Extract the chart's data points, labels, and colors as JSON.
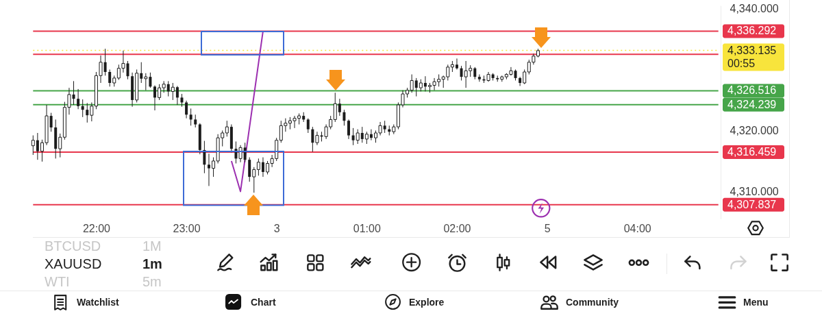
{
  "chart_data": {
    "type": "candlestick",
    "categories": [
      null,
      null,
      null,
      null,
      null,
      null,
      null,
      null,
      null,
      null,
      null,
      null,
      null,
      null,
      "22:00",
      null,
      null,
      null,
      null,
      null,
      null,
      null,
      null,
      null,
      null,
      null,
      null,
      null,
      null,
      null,
      null,
      null,
      null,
      null,
      "23:00",
      null,
      null,
      null,
      null,
      null,
      null,
      null,
      null,
      null,
      null,
      null,
      null,
      null,
      null,
      null,
      null,
      null,
      null,
      null,
      "3",
      null,
      null,
      null,
      null,
      null,
      null,
      null,
      null,
      null,
      null,
      null,
      null,
      null,
      null,
      null,
      null,
      null,
      null,
      null,
      "01:00",
      null,
      null,
      null,
      null,
      null,
      null,
      null,
      null,
      null,
      null,
      null,
      null,
      null,
      null,
      null,
      null,
      null,
      null,
      null,
      "02:00",
      null,
      null,
      null,
      null,
      null,
      null,
      null,
      null,
      null,
      null,
      null,
      null,
      null,
      null,
      null,
      null,
      null,
      null,
      null,
      "5",
      null,
      null,
      null,
      null,
      null,
      null,
      null,
      null,
      null,
      null,
      null,
      null,
      null,
      null,
      null,
      null,
      null,
      null,
      null,
      "04:00",
      null,
      null,
      null,
      null,
      null,
      null,
      null,
      null,
      null,
      null,
      null,
      null,
      null,
      null,
      null,
      null,
      null,
      null
    ],
    "ohlc": [
      [
        4317.5,
        4319.2,
        4316.0,
        4318.4
      ],
      [
        4318.4,
        4319.6,
        4315.2,
        4316.6
      ],
      [
        4316.6,
        4318.5,
        4314.9,
        4318.0
      ],
      [
        4318.0,
        4324.2,
        4317.6,
        4322.4
      ],
      [
        4322.4,
        4322.9,
        4319.8,
        4320.5
      ],
      [
        4320.5,
        4321.8,
        4315.4,
        4317.0
      ],
      [
        4317.0,
        4319.5,
        4315.6,
        4318.9
      ],
      [
        4318.9,
        4324.7,
        4318.5,
        4323.8
      ],
      [
        4323.8,
        4327.0,
        4322.6,
        4325.9
      ],
      [
        4325.9,
        4328.1,
        4324.2,
        4325.2
      ],
      [
        4325.2,
        4326.8,
        4323.5,
        4324.0
      ],
      [
        4324.0,
        4325.1,
        4322.2,
        4323.4
      ],
      [
        4323.4,
        4324.5,
        4321.3,
        4322.5
      ],
      [
        4322.5,
        4324.6,
        4321.5,
        4324.0
      ],
      [
        4324.0,
        4329.6,
        4323.5,
        4329.0
      ],
      [
        4329.0,
        4332.3,
        4327.8,
        4331.2
      ],
      [
        4331.2,
        4333.4,
        4329.0,
        4329.6
      ],
      [
        4329.6,
        4330.0,
        4327.2,
        4327.8
      ],
      [
        4327.8,
        4329.0,
        4327.2,
        4328.6
      ],
      [
        4328.6,
        4330.8,
        4328.3,
        4330.2
      ],
      [
        4330.2,
        4333.1,
        4329.5,
        4331.0
      ],
      [
        4331.0,
        4331.4,
        4328.4,
        4328.9
      ],
      [
        4328.9,
        4329.5,
        4323.9,
        4325.0
      ],
      [
        4325.0,
        4330.0,
        4324.6,
        4329.4
      ],
      [
        4329.4,
        4331.2,
        4327.8,
        4328.5
      ],
      [
        4328.5,
        4329.4,
        4326.6,
        4328.8
      ],
      [
        4328.8,
        4329.5,
        4327.0,
        4327.2
      ],
      [
        4327.2,
        4327.4,
        4323.3,
        4325.4
      ],
      [
        4325.4,
        4327.6,
        4325.0,
        4327.0
      ],
      [
        4327.0,
        4328.1,
        4326.2,
        4327.6
      ],
      [
        4327.6,
        4328.1,
        4325.6,
        4326.4
      ],
      [
        4326.4,
        4327.8,
        4325.0,
        4327.1
      ],
      [
        4327.1,
        4327.3,
        4324.2,
        4325.4
      ],
      [
        4325.4,
        4326.0,
        4323.9,
        4324.6
      ],
      [
        4324.6,
        4324.9,
        4322.0,
        4322.6
      ],
      [
        4322.6,
        4323.6,
        4320.8,
        4321.8
      ],
      [
        4321.8,
        4322.6,
        4320.5,
        4321.0
      ],
      [
        4321.0,
        4321.2,
        4316.1,
        4316.8
      ],
      [
        4316.8,
        4318.3,
        4313.0,
        4314.4
      ],
      [
        4314.4,
        4316.2,
        4310.9,
        4313.8
      ],
      [
        4313.8,
        4315.6,
        4312.4,
        4315.0
      ],
      [
        4315.0,
        4319.4,
        4314.6,
        4318.8
      ],
      [
        4318.8,
        4320.0,
        4317.4,
        4319.6
      ],
      [
        4319.6,
        4321.6,
        4319.0,
        4320.6
      ],
      [
        4320.6,
        4321.0,
        4316.4,
        4317.0
      ],
      [
        4317.0,
        4318.2,
        4314.6,
        4315.4
      ],
      [
        4315.4,
        4317.6,
        4314.8,
        4317.2
      ],
      [
        4317.2,
        4318.0,
        4314.8,
        4315.2
      ],
      [
        4315.2,
        4315.6,
        4311.6,
        4312.4
      ],
      [
        4312.4,
        4314.0,
        4309.8,
        4313.6
      ],
      [
        4313.6,
        4315.4,
        4312.6,
        4314.8
      ],
      [
        4314.8,
        4315.6,
        4312.4,
        4313.2
      ],
      [
        4313.2,
        4315.0,
        4312.8,
        4314.6
      ],
      [
        4314.6,
        4316.0,
        4314.0,
        4315.4
      ],
      [
        4315.4,
        4318.8,
        4315.0,
        4318.4
      ],
      [
        4318.4,
        4321.6,
        4318.0,
        4320.8
      ],
      [
        4320.8,
        4322.0,
        4319.8,
        4321.2
      ],
      [
        4321.2,
        4322.2,
        4320.2,
        4321.6
      ],
      [
        4321.6,
        4322.4,
        4320.4,
        4322.0
      ],
      [
        4322.0,
        4322.8,
        4321.0,
        4322.4
      ],
      [
        4322.4,
        4323.0,
        4321.4,
        4321.8
      ],
      [
        4321.8,
        4322.0,
        4319.6,
        4320.2
      ],
      [
        4320.2,
        4320.6,
        4316.5,
        4318.0
      ],
      [
        4318.0,
        4319.8,
        4317.6,
        4319.2
      ],
      [
        4319.2,
        4319.8,
        4318.2,
        4319.0
      ],
      [
        4319.0,
        4321.0,
        4318.6,
        4320.6
      ],
      [
        4320.6,
        4322.4,
        4320.2,
        4321.8
      ],
      [
        4321.8,
        4326.2,
        4321.4,
        4324.4
      ],
      [
        4324.4,
        4325.2,
        4322.4,
        4323.0
      ],
      [
        4323.0,
        4323.4,
        4320.8,
        4321.6
      ],
      [
        4321.6,
        4321.8,
        4318.6,
        4319.2
      ],
      [
        4319.2,
        4320.4,
        4317.6,
        4318.4
      ],
      [
        4318.4,
        4320.2,
        4317.8,
        4319.6
      ],
      [
        4319.6,
        4320.6,
        4318.0,
        4318.6
      ],
      [
        4318.6,
        4319.8,
        4317.8,
        4319.4
      ],
      [
        4319.4,
        4320.2,
        4318.4,
        4318.8
      ],
      [
        4318.8,
        4320.0,
        4318.0,
        4319.6
      ],
      [
        4319.6,
        4321.4,
        4319.2,
        4320.8
      ],
      [
        4320.8,
        4321.6,
        4319.6,
        4320.2
      ],
      [
        4320.2,
        4320.8,
        4319.2,
        4319.8
      ],
      [
        4319.8,
        4321.0,
        4319.4,
        4320.6
      ],
      [
        4320.6,
        4324.6,
        4320.2,
        4324.2
      ],
      [
        4324.2,
        4326.6,
        4323.8,
        4326.0
      ],
      [
        4326.0,
        4327.0,
        4325.4,
        4326.6
      ],
      [
        4326.6,
        4329.2,
        4326.2,
        4328.2
      ],
      [
        4328.2,
        4328.6,
        4325.6,
        4327.0
      ],
      [
        4327.0,
        4328.4,
        4326.4,
        4327.8
      ],
      [
        4327.8,
        4328.9,
        4326.4,
        4327.2
      ],
      [
        4327.2,
        4327.8,
        4326.2,
        4327.4
      ],
      [
        4327.4,
        4328.6,
        4326.6,
        4328.0
      ],
      [
        4328.0,
        4329.2,
        4327.2,
        4328.4
      ],
      [
        4328.4,
        4329.0,
        4327.0,
        4328.8
      ],
      [
        4328.8,
        4330.8,
        4328.2,
        4330.4
      ],
      [
        4330.4,
        4331.4,
        4329.6,
        4330.8
      ],
      [
        4330.8,
        4331.8,
        4330.0,
        4330.2
      ],
      [
        4330.2,
        4330.6,
        4328.2,
        4328.8
      ],
      [
        4328.8,
        4331.4,
        4327.0,
        4329.8
      ],
      [
        4329.8,
        4330.7,
        4328.8,
        4330.2
      ],
      [
        4330.2,
        4330.4,
        4328.4,
        4328.8
      ],
      [
        4328.8,
        4329.2,
        4328.0,
        4328.4
      ],
      [
        4328.4,
        4329.0,
        4327.8,
        4328.2
      ],
      [
        4328.2,
        4329.6,
        4328.0,
        4329.2
      ],
      [
        4329.2,
        4329.4,
        4328.2,
        4328.6
      ],
      [
        4328.6,
        4329.0,
        4328.0,
        4328.4
      ],
      [
        4328.4,
        4329.0,
        4328.0,
        4328.8
      ],
      [
        4328.8,
        4329.4,
        4328.4,
        4329.2
      ],
      [
        4329.2,
        4330.4,
        4329.0,
        4329.8
      ],
      [
        4329.8,
        4330.0,
        4328.2,
        4328.6
      ],
      [
        4328.6,
        4328.8,
        4327.3,
        4327.8
      ],
      [
        4327.8,
        4330.0,
        4327.6,
        4329.6
      ],
      [
        4329.6,
        4331.6,
        4329.2,
        4331.2
      ],
      [
        4331.2,
        4332.6,
        4330.8,
        4332.2
      ],
      [
        4332.2,
        4333.4,
        4332.0,
        4333.1
      ],
      null,
      null,
      null,
      null,
      null,
      null,
      null,
      null,
      null,
      null,
      null,
      null,
      null,
      null,
      null,
      null,
      null,
      null,
      null,
      null,
      null,
      null,
      null,
      null,
      null,
      null,
      null,
      null,
      null,
      null,
      null,
      null,
      null,
      null,
      null,
      null,
      null,
      null,
      null,
      null
    ],
    "color": "#1c1c1c",
    "series": [
      {
        "type": "line",
        "color": "#9c2fb0",
        "values": [
          null,
          null,
          null,
          null,
          null,
          null,
          null,
          null,
          null,
          null,
          null,
          null,
          null,
          null,
          null,
          null,
          null,
          null,
          null,
          null,
          null,
          null,
          null,
          null,
          null,
          null,
          null,
          null,
          null,
          null,
          null,
          null,
          null,
          null,
          null,
          null,
          null,
          null,
          null,
          null,
          null,
          null,
          null,
          null,
          4315.0,
          null,
          4310.0,
          null,
          null,
          null,
          null,
          4336.3,
          null,
          null,
          null,
          null,
          null,
          null,
          null,
          null,
          null,
          null,
          null,
          null,
          null,
          null,
          null,
          null,
          null,
          null,
          null,
          null,
          null,
          null,
          null,
          null,
          null,
          null,
          null,
          null,
          null,
          null,
          null,
          null,
          null,
          null,
          null,
          null,
          null,
          null,
          null,
          null,
          null,
          null,
          null,
          null,
          null,
          null,
          null,
          null,
          null,
          null,
          null,
          null,
          null,
          null,
          null,
          null,
          null,
          null,
          null,
          null,
          null,
          null,
          null,
          null,
          null,
          null,
          null,
          null,
          null,
          null,
          null,
          null,
          null,
          null,
          null,
          null,
          null,
          null,
          null,
          null,
          null,
          null,
          null,
          null,
          null,
          null,
          null,
          null,
          null,
          null,
          null,
          null,
          null,
          null,
          null,
          null,
          null,
          null,
          null,
          null,
          null
        ]
      }
    ],
    "ylim": [
      4305.5,
      4340.5
    ],
    "yticks": [
      {
        "value": 4310,
        "label": "4,310.000"
      },
      {
        "value": 4320,
        "label": "4,320.000"
      },
      {
        "value": 4340,
        "label": "4,340.000"
      }
    ],
    "ref_lines": [
      {
        "axis": "y",
        "value": 4336.292,
        "label": "4,336.292",
        "color": "#e8364c"
      },
      {
        "axis": "y",
        "value": 4332.5,
        "color": "#e8364c"
      },
      {
        "axis": "y",
        "value": 4333.135,
        "label": "4,333.135",
        "color": "#f8e43c",
        "line_style": "dotted"
      },
      {
        "axis": "y",
        "value": 4326.516,
        "label": "4,326.516",
        "color": "#46a549"
      },
      {
        "axis": "y",
        "value": 4324.239,
        "label": "4,324.239",
        "color": "#46a549"
      },
      {
        "axis": "y",
        "value": 4316.459,
        "label": "4,316.459",
        "color": "#e8364c"
      },
      {
        "axis": "y",
        "value": 4307.837,
        "label": "4,307.837",
        "color": "#e8364c"
      }
    ],
    "annotations": [
      "BTCUSD",
      "1M",
      "XAUUSD",
      "1m",
      "WTI",
      "5m",
      "Watchlist",
      "Chart",
      "Explore",
      "Community",
      "Menu",
      "00:55"
    ]
  }
}
